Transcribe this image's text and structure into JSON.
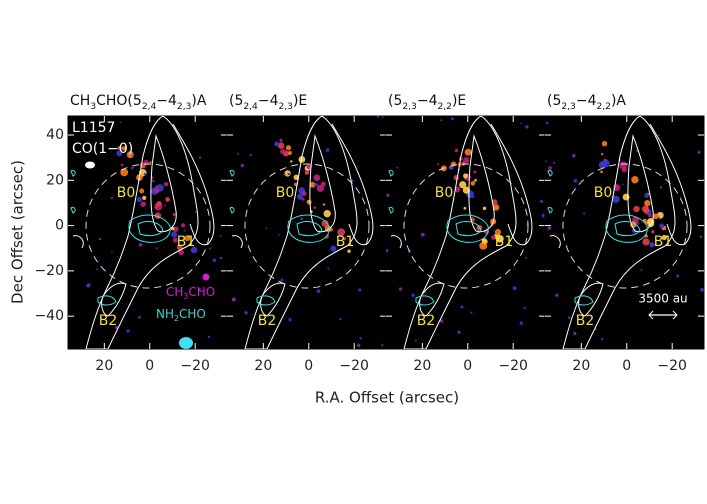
{
  "figure": {
    "y_axis_label": "Dec Offset (arcsec)",
    "x_axis_label": "R.A. Offset (arcsec)",
    "xlim": [
      36,
      -34
    ],
    "ylim": [
      -54.5,
      48.4
    ],
    "xticks": [
      20,
      0,
      {
        "value": -20,
        "label": "−20"
      }
    ],
    "yticks": [
      40,
      20,
      0,
      {
        "value": -20,
        "label": "−20"
      },
      {
        "value": -40,
        "label": "−40"
      }
    ],
    "panels": [
      {
        "title": [
          {
            "text": "CH"
          },
          {
            "text": "3",
            "sub": true
          },
          {
            "text": "CHO(5"
          },
          {
            "text": "2,4",
            "sub": true
          },
          {
            "text": "−4"
          },
          {
            "text": "2,3",
            "sub": true
          },
          {
            "text": ")A"
          }
        ],
        "labels": [
          "B0",
          "B1",
          "B2"
        ],
        "source": "L1157",
        "tracer": "CO(1−0)",
        "legend": [
          [
            {
              "text": "CH"
            },
            {
              "text": "3",
              "sub": true
            },
            {
              "text": "CHO"
            }
          ],
          [
            {
              "text": "NH"
            },
            {
              "text": "2",
              "sub": true
            },
            {
              "text": "CHO"
            }
          ]
        ]
      },
      {
        "title": [
          {
            "text": "(5"
          },
          {
            "text": "2,4",
            "sub": true
          },
          {
            "text": "−4"
          },
          {
            "text": "2,3",
            "sub": true
          },
          {
            "text": ")E"
          }
        ],
        "labels": [
          "B0",
          "B1",
          "B2"
        ]
      },
      {
        "title": [
          {
            "text": "(5"
          },
          {
            "text": "2,3",
            "sub": true
          },
          {
            "text": "−4"
          },
          {
            "text": "2,2",
            "sub": true
          },
          {
            "text": ")E"
          }
        ],
        "labels": [
          "B0",
          "B1",
          "B2"
        ]
      },
      {
        "title": [
          {
            "text": "(5"
          },
          {
            "text": "2,3",
            "sub": true
          },
          {
            "text": "−4"
          },
          {
            "text": "2,2",
            "sub": true
          },
          {
            "text": ")A"
          }
        ],
        "labels": [
          "B0",
          "B1",
          "B2"
        ],
        "scale_bar": "3500 au"
      }
    ]
  }
}
